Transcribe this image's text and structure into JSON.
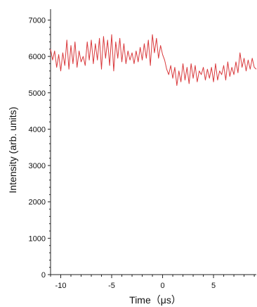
{
  "chart_data": {
    "type": "line",
    "title": "",
    "xlabel": "Time（μs）",
    "ylabel": "Intensity (arb. units)",
    "xlim": [
      -11,
      9.2
    ],
    "ylim": [
      0,
      7300
    ],
    "x_ticks": [
      -10,
      -5,
      0,
      5
    ],
    "x_tick_labels": [
      "-10",
      "-5",
      "0",
      "5"
    ],
    "y_ticks": [
      0,
      1000,
      2000,
      3000,
      4000,
      5000,
      6000,
      7000
    ],
    "y_tick_labels": [
      "0",
      "1000",
      "2000",
      "3000",
      "4000",
      "5000",
      "6000",
      "7000"
    ],
    "grid": false,
    "series": [
      {
        "color": "#d9393c",
        "x": [
          -11.0,
          -10.8,
          -10.6,
          -10.4,
          -10.2,
          -10.0,
          -9.8,
          -9.6,
          -9.4,
          -9.2,
          -9.0,
          -8.8,
          -8.6,
          -8.4,
          -8.2,
          -8.0,
          -7.8,
          -7.6,
          -7.4,
          -7.2,
          -7.0,
          -6.8,
          -6.6,
          -6.4,
          -6.2,
          -6.0,
          -5.8,
          -5.6,
          -5.4,
          -5.2,
          -5.0,
          -4.8,
          -4.6,
          -4.4,
          -4.2,
          -4.0,
          -3.8,
          -3.6,
          -3.4,
          -3.2,
          -3.0,
          -2.8,
          -2.6,
          -2.4,
          -2.2,
          -2.0,
          -1.8,
          -1.6,
          -1.4,
          -1.2,
          -1.0,
          -0.8,
          -0.6,
          -0.4,
          -0.2,
          0.0,
          0.2,
          0.4,
          0.6,
          0.8,
          1.0,
          1.2,
          1.4,
          1.6,
          1.8,
          2.0,
          2.2,
          2.4,
          2.6,
          2.8,
          3.0,
          3.2,
          3.4,
          3.6,
          3.8,
          4.0,
          4.2,
          4.4,
          4.6,
          4.8,
          5.0,
          5.2,
          5.4,
          5.6,
          5.8,
          6.0,
          6.2,
          6.4,
          6.6,
          6.8,
          7.0,
          7.2,
          7.4,
          7.6,
          7.8,
          8.0,
          8.2,
          8.4,
          8.6,
          8.8,
          9.0,
          9.2
        ],
        "values": [
          6200,
          5900,
          6150,
          5700,
          6050,
          5600,
          6100,
          5750,
          6450,
          5650,
          6300,
          5800,
          6400,
          5700,
          6150,
          5850,
          6000,
          5750,
          6400,
          5900,
          6450,
          5800,
          6350,
          5900,
          6500,
          5650,
          6550,
          5950,
          6450,
          5750,
          6600,
          5600,
          6400,
          5950,
          6500,
          5850,
          6350,
          5800,
          6150,
          5900,
          6100,
          5800,
          6150,
          5850,
          6250,
          5900,
          6350,
          5950,
          6450,
          5750,
          6600,
          6100,
          6500,
          5950,
          6300,
          6050,
          5900,
          5650,
          5500,
          5750,
          5400,
          5700,
          5200,
          5600,
          5300,
          5800,
          5350,
          5700,
          5250,
          5800,
          5400,
          5750,
          5300,
          5600,
          5500,
          5700,
          5350,
          5650,
          5400,
          5700,
          5300,
          5800,
          5350,
          5600,
          5500,
          5750,
          5350,
          5850,
          5450,
          5700,
          5500,
          5850,
          5550,
          6100,
          5700,
          5950,
          5600,
          5900,
          5650,
          5950,
          5700,
          5650
        ]
      }
    ]
  }
}
